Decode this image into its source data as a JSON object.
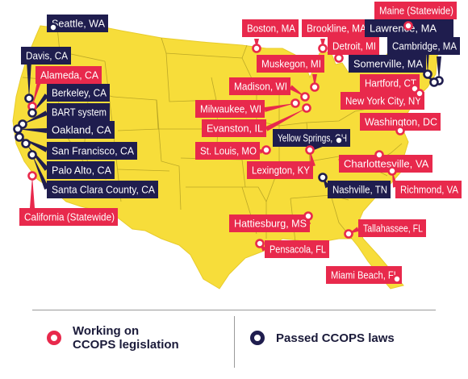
{
  "colors": {
    "working": "#e8294c",
    "passed": "#1f1d4e",
    "map_fill": "#f7dd3a",
    "state_border": "#a89520"
  },
  "legend": {
    "working_label": "Working on\nCCOPS legislation",
    "passed_label": "Passed CCOPS laws"
  },
  "cities": [
    {
      "name": "Seattle, WA",
      "status": "passed"
    },
    {
      "name": "Davis, CA",
      "status": "passed"
    },
    {
      "name": "Alameda, CA",
      "status": "working"
    },
    {
      "name": "Berkeley, CA",
      "status": "passed"
    },
    {
      "name": "BART system",
      "status": "passed"
    },
    {
      "name": "Oakland, CA",
      "status": "passed"
    },
    {
      "name": "San Francisco, CA",
      "status": "passed"
    },
    {
      "name": "Palo Alto, CA",
      "status": "passed"
    },
    {
      "name": "Santa Clara County, CA",
      "status": "passed"
    },
    {
      "name": "California (Statewide)",
      "status": "working"
    },
    {
      "name": "Boston, MA",
      "status": "working"
    },
    {
      "name": "Brookline, MA",
      "status": "working"
    },
    {
      "name": "Maine (Statewide)",
      "status": "working"
    },
    {
      "name": "Lawrence, MA",
      "status": "passed"
    },
    {
      "name": "Cambridge, MA",
      "status": "passed"
    },
    {
      "name": "Detroit, MI",
      "status": "working"
    },
    {
      "name": "Somerville, MA",
      "status": "passed"
    },
    {
      "name": "Muskegon, MI",
      "status": "working"
    },
    {
      "name": "Hartford, CT",
      "status": "working"
    },
    {
      "name": "Madison, WI",
      "status": "working"
    },
    {
      "name": "New York City, NY",
      "status": "working"
    },
    {
      "name": "Milwaukee, WI",
      "status": "working"
    },
    {
      "name": "Washington, DC",
      "status": "working"
    },
    {
      "name": "Evanston, IL",
      "status": "working"
    },
    {
      "name": "Yellow Springs, OH",
      "status": "passed"
    },
    {
      "name": "St. Louis, MO",
      "status": "working"
    },
    {
      "name": "Lexington, KY",
      "status": "working"
    },
    {
      "name": "Charlottesville, VA",
      "status": "working"
    },
    {
      "name": "Nashville, TN",
      "status": "passed"
    },
    {
      "name": "Richmond, VA",
      "status": "working"
    },
    {
      "name": "Hattiesburg, MS",
      "status": "working"
    },
    {
      "name": "Tallahassee, FL",
      "status": "working"
    },
    {
      "name": "Pensacola, FL",
      "status": "working"
    },
    {
      "name": "Miami Beach, FL",
      "status": "working"
    }
  ]
}
